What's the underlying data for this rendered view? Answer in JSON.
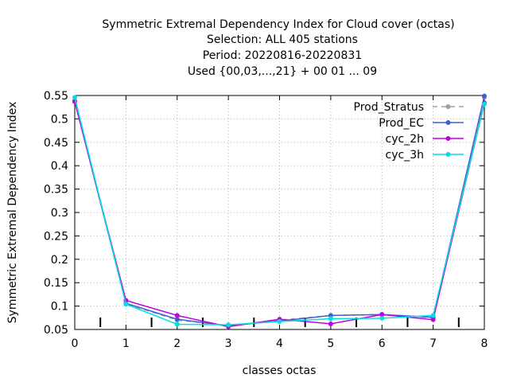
{
  "chart_data": {
    "type": "line",
    "title_lines": [
      "Symmetric Extremal Dependency Index  for Cloud cover (octas)",
      "Selection: ALL    405 stations",
      "Period: 20220816-20220831",
      "Used {00,03,...,21} + 00 01 ... 09"
    ],
    "xlabel": "classes octas",
    "ylabel": "Symmetric Extremal Dependency Index",
    "xlim": [
      0,
      8
    ],
    "ylim": [
      0.05,
      0.55
    ],
    "x_ticks": [
      "0",
      "1",
      "2",
      "3",
      "4",
      "5",
      "6",
      "7",
      "8"
    ],
    "y_ticks": [
      "0.05",
      "0.1",
      "0.15",
      "0.2",
      "0.25",
      "0.3",
      "0.35",
      "0.4",
      "0.45",
      "0.5",
      "0.55"
    ],
    "grid": true,
    "legend_position": "top-right",
    "x": [
      0,
      1,
      2,
      3,
      4,
      5,
      6,
      7,
      8
    ],
    "series": [
      {
        "name": "Prod_Stratus",
        "color": "#a0a0a0",
        "dash": "dashed",
        "values": [
          0.537,
          0.105,
          0.07,
          0.058,
          0.07,
          0.08,
          0.082,
          0.075,
          0.546
        ]
      },
      {
        "name": "Prod_EC",
        "color": "#4060d0",
        "dash": "solid",
        "values": [
          0.538,
          0.106,
          0.072,
          0.058,
          0.068,
          0.08,
          0.082,
          0.076,
          0.549
        ]
      },
      {
        "name": "cyc_2h",
        "color": "#c000e0",
        "dash": "solid",
        "values": [
          0.537,
          0.112,
          0.08,
          0.056,
          0.072,
          0.062,
          0.082,
          0.071,
          0.534
        ]
      },
      {
        "name": "cyc_3h",
        "color": "#00e0e0",
        "dash": "solid",
        "values": [
          0.546,
          0.104,
          0.061,
          0.06,
          0.067,
          0.073,
          0.074,
          0.08,
          0.532
        ]
      }
    ],
    "bottom_markers_x": [
      0.5,
      1.5,
      2.5,
      3.5,
      4.5,
      5.5,
      6.5,
      7.5
    ]
  }
}
